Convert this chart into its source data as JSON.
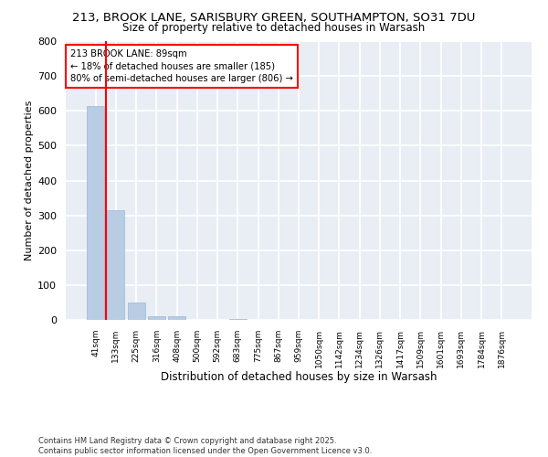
{
  "title1": "213, BROOK LANE, SARISBURY GREEN, SOUTHAMPTON, SO31 7DU",
  "title2": "Size of property relative to detached houses in Warsash",
  "xlabel": "Distribution of detached houses by size in Warsash",
  "ylabel": "Number of detached properties",
  "annotation_title": "213 BROOK LANE: 89sqm",
  "annotation_line1": "← 18% of detached houses are smaller (185)",
  "annotation_line2": "80% of semi-detached houses are larger (806) →",
  "categories": [
    "41sqm",
    "133sqm",
    "225sqm",
    "316sqm",
    "408sqm",
    "500sqm",
    "592sqm",
    "683sqm",
    "775sqm",
    "867sqm",
    "959sqm",
    "1050sqm",
    "1142sqm",
    "1234sqm",
    "1326sqm",
    "1417sqm",
    "1509sqm",
    "1601sqm",
    "1693sqm",
    "1784sqm",
    "1876sqm"
  ],
  "values": [
    615,
    315,
    50,
    10,
    10,
    0,
    0,
    3,
    0,
    0,
    0,
    0,
    0,
    0,
    0,
    0,
    0,
    0,
    0,
    0,
    0
  ],
  "bar_color": "#b8cce4",
  "bar_edge_color": "#9ab8d8",
  "vline_color": "red",
  "vline_x": 0.52,
  "ylim": [
    0,
    800
  ],
  "yticks": [
    0,
    100,
    200,
    300,
    400,
    500,
    600,
    700,
    800
  ],
  "annotation_box_edgecolor": "red",
  "footer1": "Contains HM Land Registry data © Crown copyright and database right 2025.",
  "footer2": "Contains public sector information licensed under the Open Government Licence v3.0.",
  "bg_color": "#ffffff",
  "plot_bg_color": "#e8eef4",
  "grid_color": "#ffffff",
  "title_fontsize": 10,
  "subtitle_fontsize": 9
}
